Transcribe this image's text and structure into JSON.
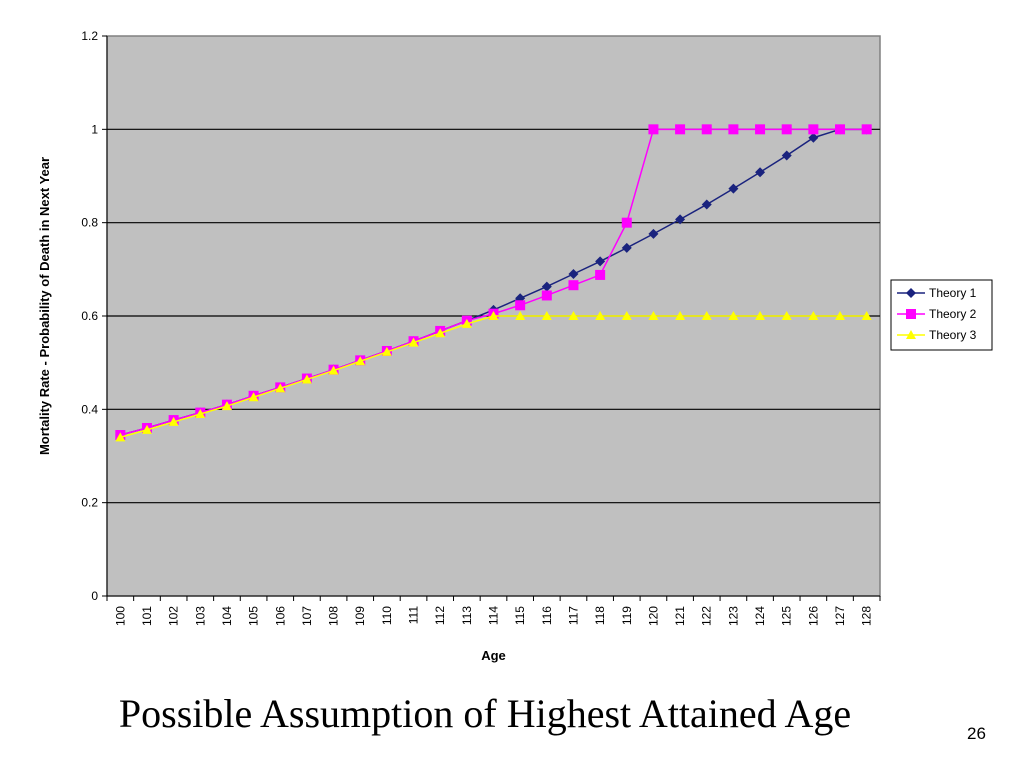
{
  "slide": {
    "title": "Possible Assumption of Highest Attained Age",
    "page_number": "26"
  },
  "chart_data": {
    "type": "line",
    "title": "",
    "xlabel": "Age",
    "ylabel": "Mortality Rate - Probability of Death in Next Year",
    "ylim": [
      0,
      1.2
    ],
    "yticks": [
      "0",
      "0.2",
      "0.4",
      "0.6",
      "0.8",
      "1",
      "1.2"
    ],
    "grid": "horizontal",
    "legend_position": "right",
    "plot_background": "#c0c0c0",
    "categories": [
      "100",
      "101",
      "102",
      "103",
      "104",
      "105",
      "106",
      "107",
      "108",
      "109",
      "110",
      "111",
      "112",
      "113",
      "114",
      "115",
      "116",
      "117",
      "118",
      "119",
      "120",
      "121",
      "122",
      "123",
      "124",
      "125",
      "126",
      "127",
      "128"
    ],
    "series": [
      {
        "name": "Theory 1",
        "color": "#1a237e",
        "marker": "diamond",
        "values": [
          0.345,
          0.36,
          0.377,
          0.393,
          0.41,
          0.429,
          0.447,
          0.466,
          0.485,
          0.505,
          0.525,
          0.546,
          0.568,
          0.59,
          0.613,
          0.638,
          0.663,
          0.69,
          0.717,
          0.746,
          0.776,
          0.807,
          0.839,
          0.873,
          0.908,
          0.944,
          0.982,
          1.0,
          1.0
        ]
      },
      {
        "name": "Theory 2",
        "color": "#ff00ff",
        "marker": "square",
        "values": [
          0.345,
          0.36,
          0.377,
          0.393,
          0.41,
          0.429,
          0.447,
          0.466,
          0.485,
          0.505,
          0.525,
          0.546,
          0.568,
          0.59,
          0.605,
          0.623,
          0.644,
          0.666,
          0.688,
          0.8,
          1.0,
          1.0,
          1.0,
          1.0,
          1.0,
          1.0,
          1.0,
          1.0,
          1.0
        ]
      },
      {
        "name": "Theory 3",
        "color": "#ffff00",
        "marker": "triangle",
        "values": [
          0.34,
          0.356,
          0.373,
          0.39,
          0.407,
          0.426,
          0.445,
          0.464,
          0.483,
          0.503,
          0.523,
          0.543,
          0.563,
          0.583,
          0.6,
          0.6,
          0.6,
          0.6,
          0.6,
          0.6,
          0.6,
          0.6,
          0.6,
          0.6,
          0.6,
          0.6,
          0.6,
          0.6,
          0.6
        ]
      }
    ]
  }
}
